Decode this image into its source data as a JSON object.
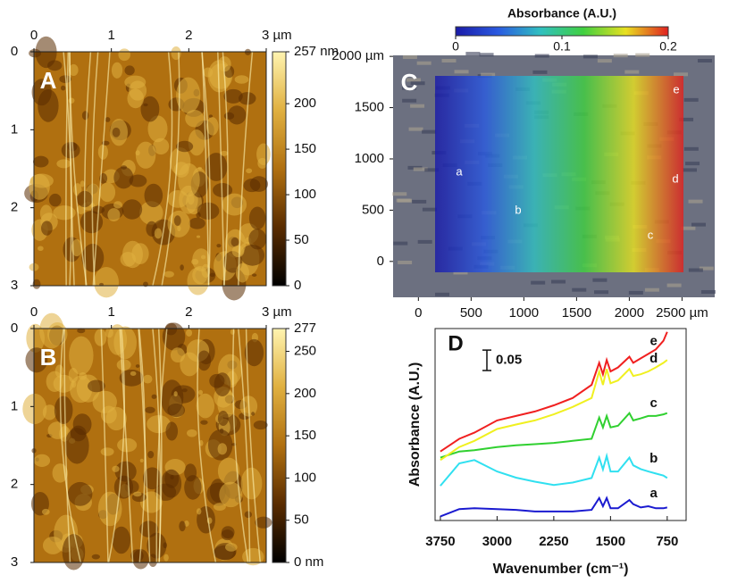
{
  "chart_data": [
    {
      "type": "image",
      "label": "A",
      "xlim": [
        0,
        3
      ],
      "xticks": [
        0,
        1,
        2,
        {
          "value": 3,
          "label": "3 µm"
        }
      ],
      "ylim": [
        3,
        0
      ],
      "yticks": [
        0,
        1,
        2,
        3
      ],
      "colormap": [
        "#000000",
        "#5a2c00",
        "#b07010",
        "#e0b040",
        "#fff4b0"
      ],
      "colorbar": {
        "lim": [
          0,
          257
        ],
        "ticks": [
          0,
          50,
          100,
          150,
          200,
          {
            "value": 257,
            "label": "257 nm"
          }
        ]
      }
    },
    {
      "type": "image",
      "label": "B",
      "xlim": [
        0,
        3
      ],
      "xticks": [
        0,
        1,
        2,
        {
          "value": 3,
          "label": "3 µm"
        }
      ],
      "ylim": [
        3,
        0
      ],
      "yticks": [
        0,
        1,
        2,
        3
      ],
      "colormap": [
        "#000000",
        "#5a2c00",
        "#b07010",
        "#e0b040",
        "#fff4b0"
      ],
      "colorbar": {
        "lim": [
          0,
          277
        ],
        "ticks": [
          {
            "value": 0,
            "label": "0 nm"
          },
          50,
          100,
          150,
          200,
          250,
          277
        ]
      }
    },
    {
      "type": "image",
      "label": "C",
      "xlim": [
        -240,
        2810
      ],
      "xticks": [
        0,
        500,
        1000,
        1500,
        2000,
        {
          "value": 2500,
          "label": "2500 µm"
        }
      ],
      "ylim": [
        -350,
        2010
      ],
      "yticks": [
        0,
        500,
        1000,
        1500,
        {
          "value": 2000,
          "label": "2000 µm"
        }
      ],
      "colormap": [
        "#1a1aa8",
        "#2a5ae0",
        "#30c0c0",
        "#40d040",
        "#e8e020",
        "#e02020"
      ],
      "colorbar": {
        "title": "Absorbance (A.U.)",
        "lim": [
          0,
          0.2
        ],
        "ticks": [
          0,
          0.1,
          0.2
        ]
      },
      "annotations": [
        "a",
        "b",
        "c",
        "d",
        "e"
      ]
    },
    {
      "type": "line",
      "label": "D",
      "xlabel": "Wavenumber (cm⁻¹)",
      "ylabel": "Absorbance (A.U.)",
      "xlim": [
        3820,
        500
      ],
      "xticks": [
        3750,
        3000,
        2250,
        1500,
        750
      ],
      "ylim": [
        0,
        0.47
      ],
      "scalebar": 0.05,
      "x": [
        3750,
        3500,
        3300,
        3000,
        2750,
        2500,
        2250,
        2000,
        1750,
        1650,
        1600,
        1550,
        1500,
        1400,
        1250,
        1200,
        1100,
        1000,
        900,
        800,
        750
      ],
      "series": [
        {
          "name": "a",
          "color": "#1a1ad0",
          "values": [
            0.01,
            0.028,
            0.03,
            0.028,
            0.026,
            0.022,
            0.022,
            0.022,
            0.026,
            0.055,
            0.035,
            0.055,
            0.03,
            0.03,
            0.05,
            0.04,
            0.032,
            0.035,
            0.03,
            0.03,
            0.032
          ]
        },
        {
          "name": "b",
          "color": "#30e0f0",
          "values": [
            0.085,
            0.14,
            0.148,
            0.12,
            0.105,
            0.095,
            0.087,
            0.093,
            0.104,
            0.154,
            0.125,
            0.158,
            0.12,
            0.12,
            0.154,
            0.135,
            0.126,
            0.12,
            0.115,
            0.11,
            0.104
          ]
        },
        {
          "name": "c",
          "color": "#30d030",
          "values": [
            0.154,
            0.169,
            0.172,
            0.18,
            0.184,
            0.187,
            0.19,
            0.195,
            0.2,
            0.252,
            0.228,
            0.256,
            0.228,
            0.232,
            0.263,
            0.245,
            0.25,
            0.256,
            0.256,
            0.26,
            0.263
          ]
        },
        {
          "name": "d",
          "color": "#f0f020",
          "values": [
            0.148,
            0.18,
            0.195,
            0.224,
            0.235,
            0.245,
            0.26,
            0.278,
            0.3,
            0.365,
            0.332,
            0.371,
            0.336,
            0.343,
            0.371,
            0.354,
            0.358,
            0.365,
            0.375,
            0.386,
            0.393
          ]
        },
        {
          "name": "e",
          "color": "#f02020",
          "values": [
            0.169,
            0.2,
            0.215,
            0.245,
            0.256,
            0.267,
            0.282,
            0.3,
            0.332,
            0.386,
            0.358,
            0.393,
            0.365,
            0.375,
            0.401,
            0.386,
            0.397,
            0.408,
            0.419,
            0.44,
            0.462
          ]
        }
      ]
    }
  ]
}
